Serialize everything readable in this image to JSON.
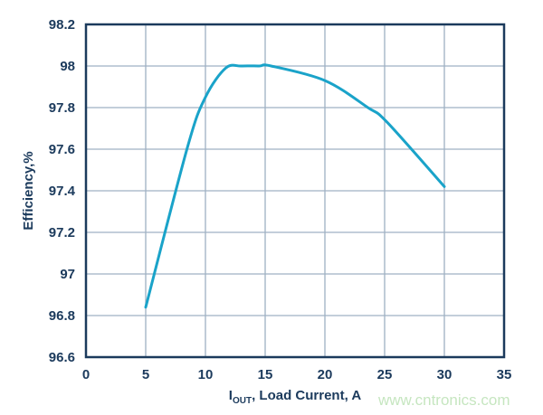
{
  "chart_data": {
    "type": "line",
    "xlabel_main": "I",
    "xlabel_sub": "OUT",
    "xlabel_rest": ", Load Current, A",
    "ylabel": "Efficiency,%",
    "xlim": [
      0,
      35
    ],
    "ylim": [
      96.6,
      98.2
    ],
    "xticks": [
      "0",
      "5",
      "10",
      "15",
      "20",
      "25",
      "30",
      "35"
    ],
    "yticks": [
      "96.6",
      "96.8",
      "97",
      "97.2",
      "97.4",
      "97.6",
      "97.8",
      "98",
      "98.2"
    ],
    "grid": true,
    "series": [
      {
        "x": [
          5,
          8.5,
          10,
          11.7,
          13,
          14.5,
          15.5,
          20,
          23.6,
          25.2,
          30
        ],
        "y": [
          96.84,
          97.61,
          97.85,
          97.99,
          98.0,
          98.0,
          98.0,
          97.93,
          97.8,
          97.73,
          97.42
        ],
        "color": "#1aa3c9"
      }
    ]
  },
  "watermark": "www.cntronics.com"
}
